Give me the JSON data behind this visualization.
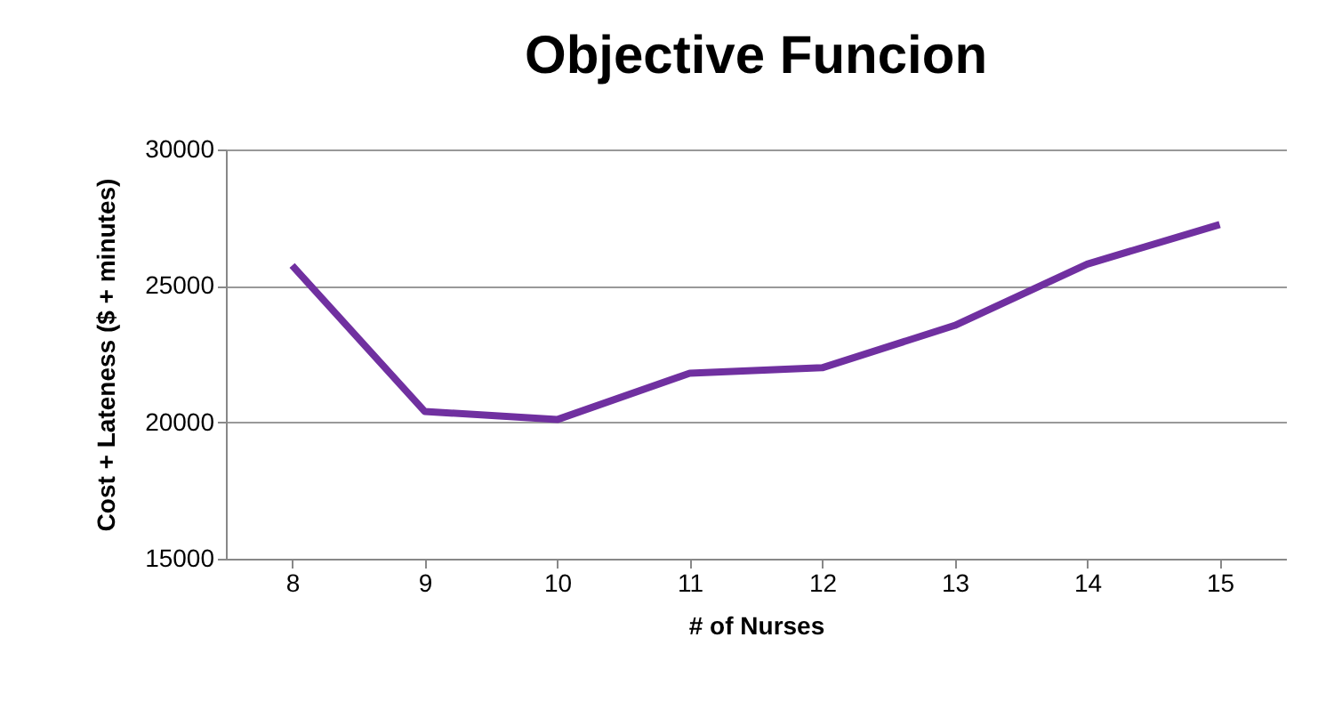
{
  "chart_data": {
    "type": "line",
    "title": "Objective Funcion",
    "xlabel": "# of Nurses",
    "ylabel": "Cost + Lateness ($ + minutes)",
    "categories": [
      "8",
      "9",
      "10",
      "11",
      "12",
      "13",
      "14",
      "15"
    ],
    "series": [
      {
        "color": "#7030a0",
        "values": [
          25750,
          20400,
          20100,
          21800,
          22000,
          23550,
          25800,
          27250
        ]
      }
    ],
    "ylim": [
      15000,
      30000
    ],
    "yticks": [
      15000,
      20000,
      25000,
      30000
    ],
    "grid": "y",
    "marker": "none",
    "line_style": "solid"
  }
}
